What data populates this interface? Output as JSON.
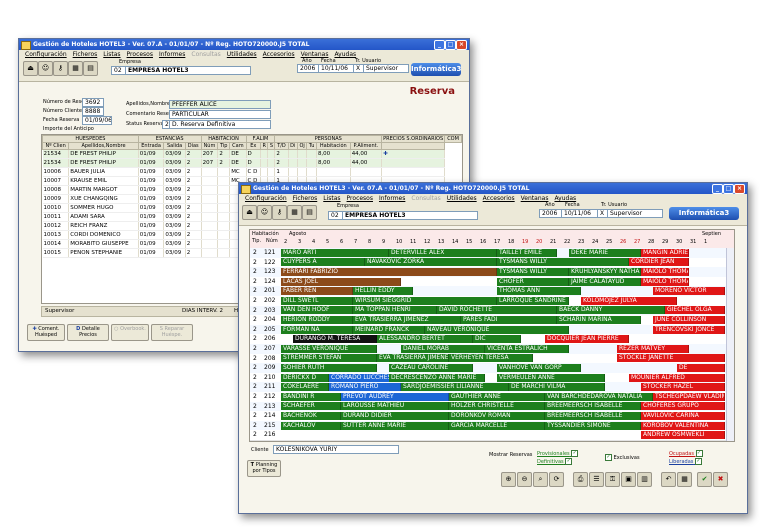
{
  "back_window": {
    "title": "Gestión de Hoteles HOTEL3  -  Ver. 07.A - 01/01/07  -  Nº Reg. HOTO720000.J5  TOTAL",
    "menu": [
      "Configuración",
      "Ficheros",
      "Listas",
      "Procesos",
      "Informes",
      "Consultas",
      "Utilidades",
      "Accesorios",
      "Ventanas",
      "Ayudas"
    ],
    "empresa_label": "Empresa",
    "empresa_code": "02",
    "empresa_name": "EMPRESA HOTEL3",
    "ano_label": "Año",
    "ano": "2006",
    "fecha_label": "Fecha",
    "fecha": "10/11/06",
    "usuario_label": "Tr. Usuario",
    "usuario_code": "X",
    "usuario": "Supervisor",
    "logo": "Informática3",
    "heading": "Reserva",
    "form": {
      "num_reserva_label": "Número de Reserva",
      "num_reserva": "3692",
      "num_cliente_label": "Número Cliente Reserva",
      "num_cliente": "8888",
      "fecha_reserva_label": "Fecha Reserva",
      "fecha_reserva": "01/09/06",
      "importe_label": "Importe del Anticipo",
      "apellidos_label": "Apellidos,Nombre",
      "apellidos": "PFEFFER ALICE",
      "comentario_label": "Comentario Reserva",
      "comentario": "PARTICULAR",
      "status_label": "Status Reserva",
      "status_code": "2",
      "status": "D. Reserva Definitiva"
    },
    "table_headers": [
      "HUESPEDES",
      "ESTANCIAS",
      "HABITACION",
      "F.ALIM",
      "PERSONAS",
      "PRECIOS S.ORDINARIOS",
      "COM"
    ],
    "subheaders": [
      "Nº Clien",
      "Apellidos,Nombre",
      "Entrada",
      "Salida",
      "Días",
      "Núm",
      "Tip",
      "Cam",
      "Ex",
      "R",
      "S",
      "T/N",
      "T/D",
      "Di",
      "Oj",
      "Tu",
      "Habitación",
      "P.Aliment."
    ],
    "rows": [
      {
        "id": "21534",
        "name": "DE FREST PHILIP",
        "in": "01/09",
        "out": "03/09",
        "d": "2",
        "num": "207",
        "tip": "2",
        "fa": "DE",
        "x": "D",
        "p": "2",
        "hab": "8,00",
        "ali": "44,00"
      },
      {
        "id": "21534",
        "name": "DE FREST PHILIP",
        "in": "01/09",
        "out": "03/09",
        "d": "2",
        "num": "207",
        "tip": "2",
        "fa": "DE",
        "x": "D",
        "p": "2",
        "hab": "8,00",
        "ali": "44,00"
      },
      {
        "id": "10006",
        "name": "BAUER JULIA",
        "in": "01/09",
        "out": "03/09",
        "d": "2",
        "num": "",
        "tip": "",
        "fa": "MC",
        "x": "C D",
        "p": "1",
        "hab": "",
        "ali": ""
      },
      {
        "id": "10007",
        "name": "KRAUSE EMIL",
        "in": "01/09",
        "out": "03/09",
        "d": "2",
        "num": "",
        "tip": "",
        "fa": "MC",
        "x": "C D",
        "p": "1",
        "hab": "",
        "ali": ""
      },
      {
        "id": "10008",
        "name": "MARTIN MARGOT",
        "in": "01/09",
        "out": "03/09",
        "d": "2",
        "num": "",
        "tip": "",
        "fa": "",
        "x": "",
        "p": "",
        "hab": "",
        "ali": ""
      },
      {
        "id": "10009",
        "name": "XUE CHANGQING",
        "in": "01/09",
        "out": "03/09",
        "d": "2",
        "num": "",
        "tip": "",
        "fa": "",
        "x": "",
        "p": "",
        "hab": "",
        "ali": ""
      },
      {
        "id": "10010",
        "name": "SOMMER HUGO",
        "in": "01/09",
        "out": "03/09",
        "d": "2",
        "num": "",
        "tip": "",
        "fa": "",
        "x": "",
        "p": "",
        "hab": "",
        "ali": ""
      },
      {
        "id": "10011",
        "name": "ADAMI SARA",
        "in": "01/09",
        "out": "03/09",
        "d": "2",
        "num": "",
        "tip": "",
        "fa": "",
        "x": "",
        "p": "",
        "hab": "",
        "ali": ""
      },
      {
        "id": "10012",
        "name": "REICH FRANZ",
        "in": "01/09",
        "out": "03/09",
        "d": "2",
        "num": "",
        "tip": "",
        "fa": "",
        "x": "",
        "p": "",
        "hab": "",
        "ali": ""
      },
      {
        "id": "10013",
        "name": "CORDI DOMENICO",
        "in": "01/09",
        "out": "03/09",
        "d": "2",
        "num": "",
        "tip": "",
        "fa": "",
        "x": "",
        "p": "",
        "hab": "",
        "ali": ""
      },
      {
        "id": "10014",
        "name": "MORABITO GIUSEPPE",
        "in": "01/09",
        "out": "03/09",
        "d": "2",
        "num": "",
        "tip": "",
        "fa": "",
        "x": "",
        "p": "",
        "hab": "",
        "ali": ""
      },
      {
        "id": "10015",
        "name": "PENON STEPHANIE",
        "in": "01/09",
        "out": "03/09",
        "d": "2",
        "num": "",
        "tip": "",
        "fa": "",
        "x": "",
        "p": "",
        "hab": "",
        "ali": ""
      }
    ],
    "status_user": "Supervisor",
    "status_interv": "DIAS INTERV. 2",
    "status_habit": "HABIT.",
    "buttons": [
      "Coment. Huésped",
      "Detalle Precios",
      "Overbook.",
      "Reparar Huéspe."
    ]
  },
  "front_window": {
    "title": "Gestión de Hoteles HOTEL3  -  Ver. 07.A - 01/01/07  -  Nº Reg. HOTO720000.J5  TOTAL",
    "menu": [
      "Configuración",
      "Ficheros",
      "Listas",
      "Procesos",
      "Informes",
      "Consultas",
      "Utilidades",
      "Accesorios",
      "Ventanas",
      "Ayudas"
    ],
    "empresa_label": "Empresa",
    "empresa_code": "02",
    "empresa_name": "EMPRESA HOTEL3",
    "ano_label": "Año",
    "ano": "2006",
    "fecha_label": "Fecha",
    "fecha": "10/11/06",
    "usuario_label": "Tr. Usuario",
    "usuario_code": "X",
    "usuario": "Supervisor",
    "logo": "Informática3",
    "hab_label": "Habitación",
    "tip_label": "Tip.",
    "num_label": "Núm",
    "month1": "Agosto",
    "month2": "Septien",
    "days": [
      "2",
      "3",
      "4",
      "5",
      "6",
      "7",
      "8",
      "9",
      "10",
      "11",
      "12",
      "13",
      "14",
      "15",
      "16",
      "17",
      "18",
      "19",
      "20",
      "21",
      "22",
      "23",
      "24",
      "25",
      "26",
      "27",
      "28",
      "29",
      "30",
      "31",
      "1"
    ],
    "rooms": [
      {
        "tip": "2",
        "num": "121"
      },
      {
        "tip": "2",
        "num": "122"
      },
      {
        "tip": "2",
        "num": "123"
      },
      {
        "tip": "2",
        "num": "124"
      },
      {
        "tip": "2",
        "num": "201"
      },
      {
        "tip": "2",
        "num": "202"
      },
      {
        "tip": "2",
        "num": "203"
      },
      {
        "tip": "2",
        "num": "204"
      },
      {
        "tip": "2",
        "num": "205"
      },
      {
        "tip": "2",
        "num": "206"
      },
      {
        "tip": "2",
        "num": "207"
      },
      {
        "tip": "2",
        "num": "208"
      },
      {
        "tip": "2",
        "num": "209"
      },
      {
        "tip": "2",
        "num": "210"
      },
      {
        "tip": "2",
        "num": "211"
      },
      {
        "tip": "2",
        "num": "212"
      },
      {
        "tip": "2",
        "num": "213"
      },
      {
        "tip": "2",
        "num": "214"
      },
      {
        "tip": "2",
        "num": "215"
      },
      {
        "tip": "2",
        "num": "216"
      }
    ],
    "bookings": [
      {
        "row": 0,
        "s": 0,
        "e": 9,
        "c": "g",
        "t": "MARO ARTI"
      },
      {
        "row": 0,
        "s": 9,
        "e": 18,
        "c": "g",
        "t": "DETERVILLE ALEX"
      },
      {
        "row": 0,
        "s": 18,
        "e": 23,
        "c": "g",
        "t": "TAILLET EMILE"
      },
      {
        "row": 0,
        "s": 24,
        "e": 30,
        "c": "g",
        "t": "DEKE MARIE"
      },
      {
        "row": 0,
        "s": 30,
        "e": 34,
        "c": "r",
        "t": "MANGIN ADRIEN"
      },
      {
        "row": 1,
        "s": 0,
        "e": 7,
        "c": "g",
        "t": "CUYPERS A"
      },
      {
        "row": 1,
        "s": 7,
        "e": 18,
        "c": "g",
        "t": "NAVAKOVIC ZORKA"
      },
      {
        "row": 1,
        "s": 18,
        "e": 29,
        "c": "g",
        "t": "TYSMANS WILLY"
      },
      {
        "row": 1,
        "s": 29,
        "e": 34,
        "c": "r",
        "t": "CORDIER JEAN"
      },
      {
        "row": 2,
        "s": 0,
        "e": 18,
        "c": "br",
        "t": "FERRARI FABRIZIO"
      },
      {
        "row": 2,
        "s": 18,
        "e": 24,
        "c": "g",
        "t": "TYSMANS WILLY"
      },
      {
        "row": 2,
        "s": 24,
        "e": 30,
        "c": "g",
        "t": "KRUHLYANSKYY NATHALIE"
      },
      {
        "row": 2,
        "s": 30,
        "e": 34,
        "c": "r",
        "t": "MAIOLO THOMAS"
      },
      {
        "row": 3,
        "s": 0,
        "e": 10,
        "c": "br",
        "t": "LACAS JOEL"
      },
      {
        "row": 3,
        "s": 18,
        "e": 24,
        "c": "g",
        "t": "CHOFER"
      },
      {
        "row": 3,
        "s": 24,
        "e": 30,
        "c": "g",
        "t": "JAIME CALATAYUD"
      },
      {
        "row": 3,
        "s": 30,
        "e": 34,
        "c": "r",
        "t": "MAIOLO THOMAS"
      },
      {
        "row": 4,
        "s": 0,
        "e": 6,
        "c": "br",
        "t": "FABER REN"
      },
      {
        "row": 4,
        "s": 6,
        "e": 11,
        "c": "g",
        "t": "HELLIN EDDY"
      },
      {
        "row": 4,
        "s": 18,
        "e": 25,
        "c": "g",
        "t": "THOMAS ANN"
      },
      {
        "row": 4,
        "s": 31,
        "e": 37,
        "c": "r",
        "t": "MORENO VICTOR"
      },
      {
        "row": 5,
        "s": 0,
        "e": 6,
        "c": "g",
        "t": "DILL SWETL"
      },
      {
        "row": 5,
        "s": 6,
        "e": 18,
        "c": "g",
        "t": "WIRSUM SIEGGRID"
      },
      {
        "row": 5,
        "s": 18,
        "e": 24,
        "c": "g",
        "t": "LARROQUE SANDRINE"
      },
      {
        "row": 5,
        "s": 25,
        "e": 33,
        "c": "r",
        "t": "KOLOMOJEZ JULYA"
      },
      {
        "row": 6,
        "s": 0,
        "e": 6,
        "c": "g",
        "t": "VAN DEN HOOF"
      },
      {
        "row": 6,
        "s": 6,
        "e": 13,
        "c": "g",
        "t": "MA TOPPAN HENRI"
      },
      {
        "row": 6,
        "s": 13,
        "e": 23,
        "c": "g",
        "t": "DAVID ROCHETTE"
      },
      {
        "row": 6,
        "s": 23,
        "e": 32,
        "c": "g",
        "t": "BAECK DANNY"
      },
      {
        "row": 6,
        "s": 32,
        "e": 37,
        "c": "r",
        "t": "GIECHEL OLGA"
      },
      {
        "row": 7,
        "s": 0,
        "e": 6,
        "c": "g",
        "t": "HERION RODDY"
      },
      {
        "row": 7,
        "s": 6,
        "e": 15,
        "c": "g",
        "t": "EVA TRASIERRA JIMENEZ"
      },
      {
        "row": 7,
        "s": 15,
        "e": 23,
        "c": "g",
        "t": "PARES FADI"
      },
      {
        "row": 7,
        "s": 23,
        "e": 30,
        "c": "g",
        "t": "SCHARIN MARINA"
      },
      {
        "row": 7,
        "s": 31,
        "e": 37,
        "c": "r",
        "t": "JUNE COLLINSON"
      },
      {
        "row": 8,
        "s": 0,
        "e": 6,
        "c": "g",
        "t": "FORMAN NA"
      },
      {
        "row": 8,
        "s": 6,
        "e": 12,
        "c": "g",
        "t": "MEINARD FRANCK"
      },
      {
        "row": 8,
        "s": 12,
        "e": 24,
        "c": "g",
        "t": "NAVEAU VERONIQUE"
      },
      {
        "row": 8,
        "s": 31,
        "e": 37,
        "c": "r",
        "t": "TRENCOVSKI JONCE"
      },
      {
        "row": 9,
        "s": 1,
        "e": 8,
        "c": "bk",
        "t": "DURANGO M. TERESA"
      },
      {
        "row": 9,
        "s": 8,
        "e": 16,
        "c": "g",
        "t": "ALESSANDRO BERTET"
      },
      {
        "row": 9,
        "s": 16,
        "e": 20,
        "c": "g",
        "t": "DIC"
      },
      {
        "row": 9,
        "s": 22,
        "e": 29,
        "c": "r",
        "t": "DOCQUIER JEAN PIERRE"
      },
      {
        "row": 10,
        "s": 0,
        "e": 8,
        "c": "g",
        "t": "VARASSE VERONIQUE"
      },
      {
        "row": 10,
        "s": 10,
        "e": 17,
        "c": "g",
        "t": "DANIEL MORAB"
      },
      {
        "row": 10,
        "s": 17,
        "e": 24,
        "c": "g",
        "t": "VICENTA ESTRALICH"
      },
      {
        "row": 10,
        "s": 28,
        "e": 34,
        "c": "r",
        "t": "REZER MATVEY"
      },
      {
        "row": 11,
        "s": 0,
        "e": 8,
        "c": "g",
        "t": "STREMMER STEFAN"
      },
      {
        "row": 11,
        "s": 8,
        "e": 14,
        "c": "g",
        "t": "EVA TRASIERRA JIMENEZ"
      },
      {
        "row": 11,
        "s": 14,
        "e": 21,
        "c": "g",
        "t": "VERHEYEN TERESA"
      },
      {
        "row": 11,
        "s": 28,
        "e": 37,
        "c": "r",
        "t": "STOCKLE JANETTE"
      },
      {
        "row": 12,
        "s": 0,
        "e": 8,
        "c": "g",
        "t": "SOHIER RUTH"
      },
      {
        "row": 12,
        "s": 9,
        "e": 16,
        "c": "g",
        "t": "CAZEAU CAROLINE"
      },
      {
        "row": 12,
        "s": 18,
        "e": 25,
        "c": "g",
        "t": "VANHOVE VAN GORP"
      },
      {
        "row": 12,
        "s": 33,
        "e": 37,
        "c": "r",
        "t": "DE"
      },
      {
        "row": 13,
        "s": 0,
        "e": 4,
        "c": "g",
        "t": "DERICKX D"
      },
      {
        "row": 13,
        "s": 4,
        "e": 11,
        "c": "bl",
        "t": "CORRADO LUCCHESI"
      },
      {
        "row": 13,
        "s": 9,
        "e": 17,
        "c": "g",
        "t": "DECRESCENZO ANNE MARIE"
      },
      {
        "row": 13,
        "s": 18,
        "e": 27,
        "c": "g",
        "t": "VERMEULEN ANNE"
      },
      {
        "row": 13,
        "s": 29,
        "e": 37,
        "c": "r",
        "t": "MOUNIER ALFRED"
      },
      {
        "row": 14,
        "s": 0,
        "e": 4,
        "c": "g",
        "t": "COKELAERE"
      },
      {
        "row": 14,
        "s": 4,
        "e": 10,
        "c": "bl",
        "t": "ROMANO PIERO"
      },
      {
        "row": 14,
        "s": 10,
        "e": 19,
        "c": "g",
        "t": "SARDJOEMISSIER LILIANNE"
      },
      {
        "row": 14,
        "s": 19,
        "e": 27,
        "c": "g",
        "t": "DE MARCHI VILMA"
      },
      {
        "row": 14,
        "s": 30,
        "e": 37,
        "c": "r",
        "t": "STOCKER HAZEL"
      },
      {
        "row": 15,
        "s": 0,
        "e": 5,
        "c": "g",
        "t": "BANDINI R"
      },
      {
        "row": 15,
        "s": 5,
        "e": 14,
        "c": "bl",
        "t": "PREVOT AUDREY"
      },
      {
        "row": 15,
        "s": 14,
        "e": 22,
        "c": "g",
        "t": "GAUTHIER ANNE"
      },
      {
        "row": 15,
        "s": 22,
        "e": 31,
        "c": "g",
        "t": "VAN BARCHDEDAROVA NATALIA"
      },
      {
        "row": 15,
        "s": 31,
        "e": 37,
        "c": "r",
        "t": "TSCHEGPDAEW VLADIMIR"
      },
      {
        "row": 16,
        "s": 0,
        "e": 5,
        "c": "g",
        "t": "SCHAEFER"
      },
      {
        "row": 16,
        "s": 5,
        "e": 14,
        "c": "g",
        "t": "LAROUSSE MATHIEU"
      },
      {
        "row": 16,
        "s": 14,
        "e": 22,
        "c": "g",
        "t": "HOLZER CHRISTELLE"
      },
      {
        "row": 16,
        "s": 22,
        "e": 30,
        "c": "g",
        "t": "BREEMEERSCH ISABELLE"
      },
      {
        "row": 16,
        "s": 30,
        "e": 37,
        "c": "r",
        "t": "CHOFERES GRUPO"
      },
      {
        "row": 17,
        "s": 0,
        "e": 5,
        "c": "g",
        "t": "BACHENOK"
      },
      {
        "row": 17,
        "s": 5,
        "e": 14,
        "c": "g",
        "t": "DURAND DIDIER"
      },
      {
        "row": 17,
        "s": 14,
        "e": 22,
        "c": "g",
        "t": "DORONKOV ROMAN"
      },
      {
        "row": 17,
        "s": 22,
        "e": 30,
        "c": "g",
        "t": "BREEMEERSCH ISABELLE"
      },
      {
        "row": 17,
        "s": 30,
        "e": 37,
        "c": "r",
        "t": "VAVILOVIC CARINA"
      },
      {
        "row": 18,
        "s": 0,
        "e": 5,
        "c": "g",
        "t": "KACHALOV"
      },
      {
        "row": 18,
        "s": 5,
        "e": 14,
        "c": "g",
        "t": "SUTTER ANNE MARIE"
      },
      {
        "row": 18,
        "s": 14,
        "e": 22,
        "c": "g",
        "t": "GARCIA MARCELLE"
      },
      {
        "row": 18,
        "s": 22,
        "e": 30,
        "c": "g",
        "t": "TYSSANDIER SIMONE"
      },
      {
        "row": 18,
        "s": 30,
        "e": 37,
        "c": "r",
        "t": "KOROBOV VALENTINA"
      },
      {
        "row": 19,
        "s": 30,
        "e": 37,
        "c": "r",
        "t": "ANDREW OSMWEKLI"
      }
    ],
    "cliente_label": "Cliente",
    "cliente": "KOLESNIKOVA YURIY",
    "planning_btn": "Planning por Tipos",
    "mostrar_label": "Mostrar Reservas",
    "provisionales": "Provisionales",
    "definitivas": "Definitivas",
    "exclusivas": "Exclusivas",
    "ocupadas": "Ocupadas",
    "liberadas": "Liberadas"
  }
}
